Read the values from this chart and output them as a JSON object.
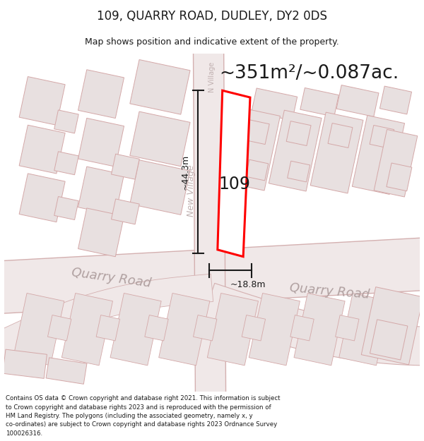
{
  "title": "109, QUARRY ROAD, DUDLEY, DY2 0DS",
  "subtitle": "Map shows position and indicative extent of the property.",
  "area_text": "~351m²/~0.087ac.",
  "label_109": "109",
  "dim_width": "~18.8m",
  "dim_height": "~44.3m",
  "footer": "Contains OS data © Crown copyright and database right 2021. This information is subject to Crown copyright and database rights 2023 and is reproduced with the permission of HM Land Registry. The polygons (including the associated geometry, namely x, y co-ordinates) are subject to Crown copyright and database rights 2023 Ordnance Survey 100026316.",
  "bg_color": "#ffffff",
  "map_bg": "#ffffff",
  "road_fill": "#f0e8e8",
  "road_edge": "#d4b0b0",
  "building_fill": "#e8e0e0",
  "building_edge": "#d4a8a8",
  "highlight_edge": "#ff0000",
  "highlight_fill": "#ffffff",
  "dim_color": "#1a1a1a",
  "text_color": "#1a1a1a",
  "road_label_color": "#b0a0a0",
  "street_label_color": "#c0b0b0"
}
